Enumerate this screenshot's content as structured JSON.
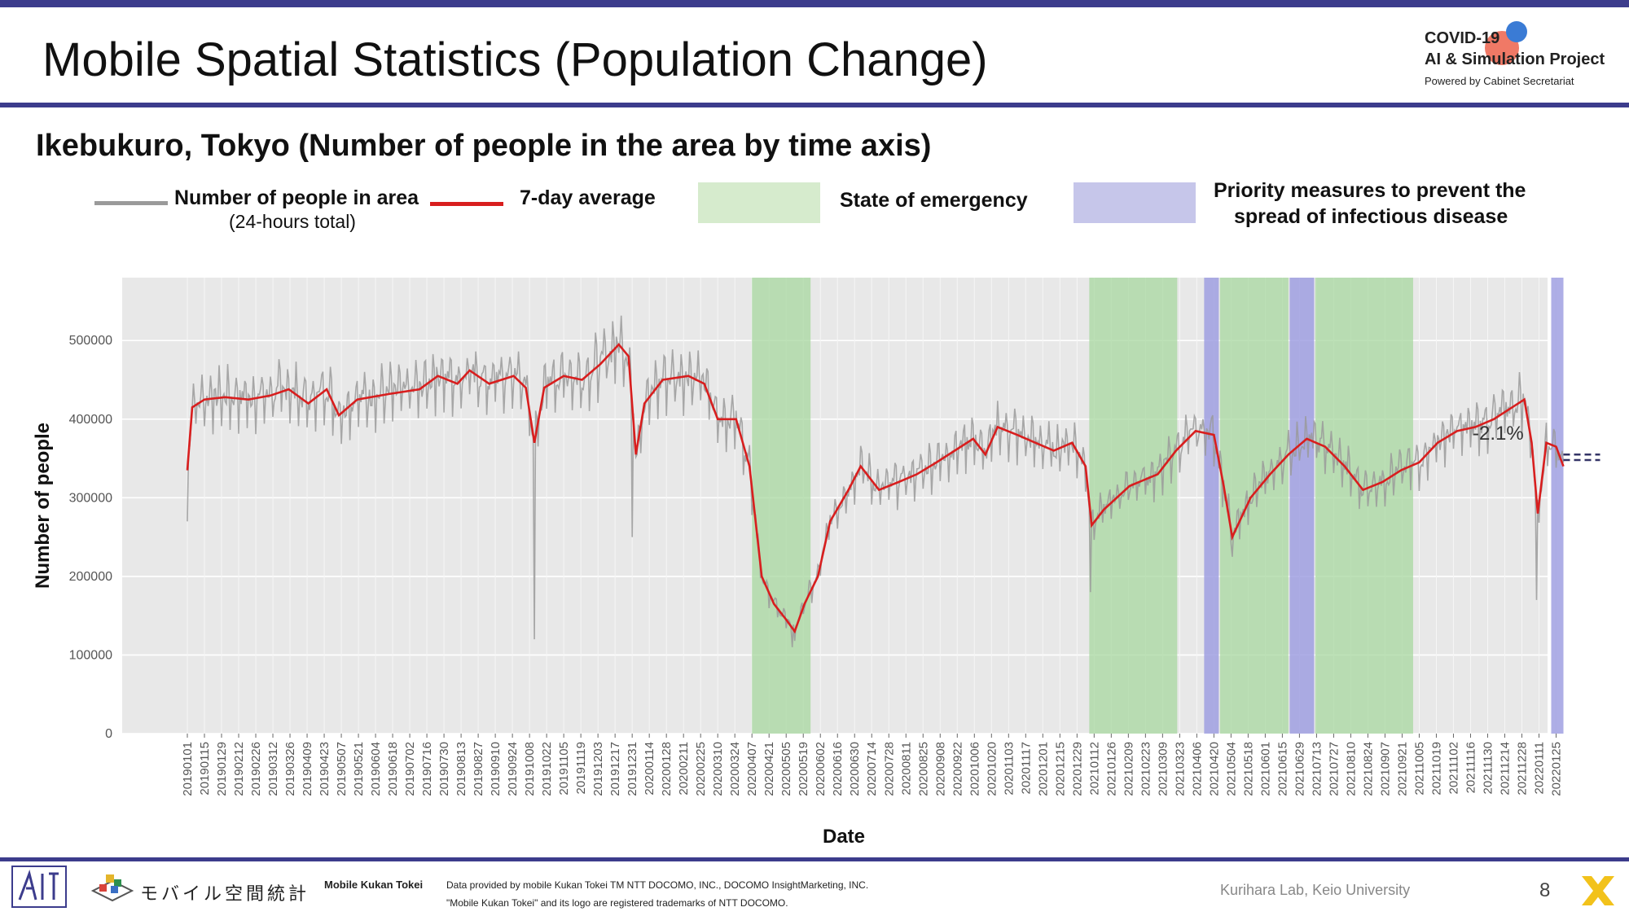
{
  "header": {
    "title": "Mobile Spatial Statistics (Population Change)",
    "logo_line1": "COVID-19",
    "logo_line2": "AI & Simulation Project",
    "logo_line3": "Powered by Cabinet Secretariat"
  },
  "subtitle": "Ikebukuro, Tokyo (Number of people in the area by time axis)",
  "legend": {
    "people_label": "Number of people in area",
    "people_sub": "(24-hours total)",
    "avg_label": "7-day average",
    "emergency_label": "State of emergency",
    "priority_label_1": "Priority measures to prevent the",
    "priority_label_2": "spread of infectious disease"
  },
  "footer": {
    "kukan_logo_text": "モバイル空間統計",
    "source_title": "Mobile Kukan Tokei",
    "source_line1": "Data provided by mobile Kukan Tokei TM NTT DOCOMO, INC., DOCOMO InsightMarketing, INC.",
    "source_line2": "\"Mobile Kukan Tokei\" and its logo are registered trademarks of NTT DOCOMO.",
    "credit": "Kurihara Lab, Keio University",
    "page_number": "8"
  },
  "colors": {
    "accent_bar": "#3c3c8c",
    "daily_line": "#9a9a9a",
    "avg_line": "#d81e1e",
    "emergency": "#a8d8a0",
    "priority": "#9a9ae0",
    "plot_bg": "#e8e8e8"
  },
  "chart_data": {
    "type": "line",
    "xlabel": "Date",
    "ylabel": "Number of people",
    "ylim": [
      0,
      580000
    ],
    "yticks": [
      0,
      100000,
      200000,
      300000,
      400000,
      500000
    ],
    "ytick_labels": [
      "0",
      "100000",
      "200000",
      "300000",
      "400000",
      "500000"
    ],
    "x_tick_labels": [
      "20190101",
      "20190115",
      "20190129",
      "20190212",
      "20190226",
      "20190312",
      "20190326",
      "20190409",
      "20190423",
      "20190507",
      "20190521",
      "20190604",
      "20190618",
      "20190702",
      "20190716",
      "20190730",
      "20190813",
      "20190827",
      "20190910",
      "20190924",
      "20191008",
      "20191022",
      "20191105",
      "20191119",
      "20191203",
      "20191217",
      "20191231",
      "20200114",
      "20200128",
      "20200211",
      "20200225",
      "20200310",
      "20200324",
      "20200407",
      "20200421",
      "20200505",
      "20200519",
      "20200602",
      "20200616",
      "20200630",
      "20200714",
      "20200728",
      "20200811",
      "20200825",
      "20200908",
      "20200922",
      "20201006",
      "20201020",
      "20201103",
      "20201117",
      "20201201",
      "20201215",
      "20201229",
      "20210112",
      "20210126",
      "20210209",
      "20210223",
      "20210309",
      "20210323",
      "20210406",
      "20210420",
      "20210504",
      "20210518",
      "20210601",
      "20210615",
      "20210629",
      "20210713",
      "20210727",
      "20210810",
      "20210824",
      "20210907",
      "20210921",
      "20211005",
      "20211019",
      "20211102",
      "20211116",
      "20211130",
      "20211214",
      "20211228",
      "20220111",
      "20220125"
    ],
    "x_range_dates": [
      "2019-01-01",
      "2022-02-07"
    ],
    "annotation": "-2.1%",
    "shaded_periods": [
      {
        "kind": "emergency",
        "start": "2020-04-07",
        "end": "2020-05-25"
      },
      {
        "kind": "emergency",
        "start": "2021-01-08",
        "end": "2021-03-21"
      },
      {
        "kind": "priority",
        "start": "2021-04-12",
        "end": "2021-04-24"
      },
      {
        "kind": "emergency",
        "start": "2021-04-25",
        "end": "2021-06-20"
      },
      {
        "kind": "priority",
        "start": "2021-06-21",
        "end": "2021-07-11"
      },
      {
        "kind": "emergency",
        "start": "2021-07-12",
        "end": "2021-09-30"
      },
      {
        "kind": "priority",
        "start": "2022-01-21",
        "end": "2022-01-31"
      }
    ],
    "series": [
      {
        "name": "7-day average",
        "points": [
          [
            "2019-01-01",
            335000
          ],
          [
            "2019-01-05",
            415000
          ],
          [
            "2019-01-15",
            425000
          ],
          [
            "2019-02-01",
            428000
          ],
          [
            "2019-02-20",
            425000
          ],
          [
            "2019-03-10",
            430000
          ],
          [
            "2019-03-25",
            438000
          ],
          [
            "2019-04-10",
            420000
          ],
          [
            "2019-04-25",
            438000
          ],
          [
            "2019-05-05",
            405000
          ],
          [
            "2019-05-20",
            425000
          ],
          [
            "2019-06-15",
            432000
          ],
          [
            "2019-07-10",
            438000
          ],
          [
            "2019-07-25",
            455000
          ],
          [
            "2019-08-10",
            445000
          ],
          [
            "2019-08-20",
            462000
          ],
          [
            "2019-09-05",
            445000
          ],
          [
            "2019-09-25",
            455000
          ],
          [
            "2019-10-05",
            440000
          ],
          [
            "2019-10-12",
            370000
          ],
          [
            "2019-10-20",
            440000
          ],
          [
            "2019-11-05",
            455000
          ],
          [
            "2019-11-20",
            450000
          ],
          [
            "2019-12-05",
            470000
          ],
          [
            "2019-12-20",
            495000
          ],
          [
            "2019-12-28",
            480000
          ],
          [
            "2020-01-03",
            355000
          ],
          [
            "2020-01-10",
            420000
          ],
          [
            "2020-01-25",
            450000
          ],
          [
            "2020-02-15",
            455000
          ],
          [
            "2020-02-28",
            445000
          ],
          [
            "2020-03-10",
            400000
          ],
          [
            "2020-03-25",
            400000
          ],
          [
            "2020-04-05",
            340000
          ],
          [
            "2020-04-15",
            200000
          ],
          [
            "2020-04-25",
            165000
          ],
          [
            "2020-05-05",
            145000
          ],
          [
            "2020-05-12",
            130000
          ],
          [
            "2020-05-20",
            165000
          ],
          [
            "2020-05-31",
            200000
          ],
          [
            "2020-06-10",
            270000
          ],
          [
            "2020-06-25",
            310000
          ],
          [
            "2020-07-05",
            340000
          ],
          [
            "2020-07-20",
            310000
          ],
          [
            "2020-08-05",
            320000
          ],
          [
            "2020-08-20",
            330000
          ],
          [
            "2020-09-05",
            345000
          ],
          [
            "2020-09-20",
            360000
          ],
          [
            "2020-10-05",
            375000
          ],
          [
            "2020-10-15",
            355000
          ],
          [
            "2020-10-25",
            390000
          ],
          [
            "2020-11-10",
            380000
          ],
          [
            "2020-11-25",
            370000
          ],
          [
            "2020-12-10",
            360000
          ],
          [
            "2020-12-25",
            370000
          ],
          [
            "2021-01-05",
            340000
          ],
          [
            "2021-01-10",
            265000
          ],
          [
            "2021-01-20",
            285000
          ],
          [
            "2021-02-10",
            315000
          ],
          [
            "2021-03-05",
            330000
          ],
          [
            "2021-03-20",
            360000
          ],
          [
            "2021-04-05",
            385000
          ],
          [
            "2021-04-20",
            380000
          ],
          [
            "2021-04-28",
            315000
          ],
          [
            "2021-05-05",
            250000
          ],
          [
            "2021-05-20",
            300000
          ],
          [
            "2021-06-05",
            330000
          ],
          [
            "2021-06-20",
            355000
          ],
          [
            "2021-07-05",
            375000
          ],
          [
            "2021-07-20",
            365000
          ],
          [
            "2021-08-05",
            340000
          ],
          [
            "2021-08-20",
            310000
          ],
          [
            "2021-09-05",
            320000
          ],
          [
            "2021-09-20",
            335000
          ],
          [
            "2021-10-05",
            345000
          ],
          [
            "2021-10-20",
            370000
          ],
          [
            "2021-11-05",
            385000
          ],
          [
            "2021-11-20",
            390000
          ],
          [
            "2021-12-05",
            400000
          ],
          [
            "2021-12-20",
            415000
          ],
          [
            "2021-12-30",
            425000
          ],
          [
            "2022-01-05",
            370000
          ],
          [
            "2022-01-10",
            280000
          ],
          [
            "2022-01-17",
            370000
          ],
          [
            "2022-01-25",
            365000
          ],
          [
            "2022-01-31",
            340000
          ]
        ]
      }
    ]
  }
}
